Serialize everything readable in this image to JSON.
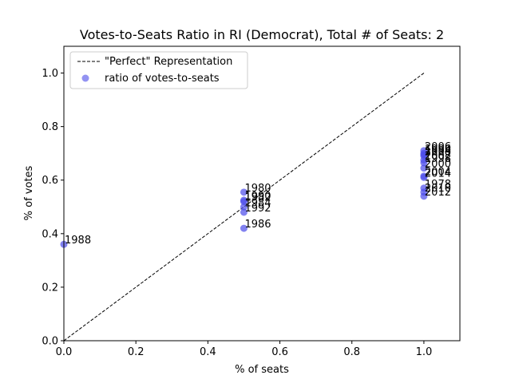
{
  "chart_data": {
    "type": "scatter",
    "title": "Votes-to-Seats Ratio in RI (Democrat), Total # of Seats: 2",
    "xlabel": "% of seats",
    "ylabel": "% of votes",
    "xlim": [
      0,
      1.1
    ],
    "ylim": [
      0,
      1.1
    ],
    "x_ticks": [
      0.0,
      0.2,
      0.4,
      0.6,
      0.8,
      1.0
    ],
    "x_tick_labels": [
      "0.0",
      "0.2",
      "0.4",
      "0.6",
      "0.8",
      "1.0"
    ],
    "y_ticks": [
      0.0,
      0.2,
      0.4,
      0.6,
      0.8,
      1.0
    ],
    "y_tick_labels": [
      "0.0",
      "0.2",
      "0.4",
      "0.6",
      "0.8",
      "1.0"
    ],
    "grid": false,
    "legend": {
      "placement": "top-left",
      "entries": [
        {
          "label": "\"Perfect\" Representation",
          "style": "dashed-line",
          "color": "#000000"
        },
        {
          "label": "ratio of votes-to-seats",
          "style": "marker",
          "color": "#4b4bea"
        }
      ]
    },
    "reference_line": {
      "x": [
        0,
        1
      ],
      "y": [
        0,
        1
      ],
      "style": "dashed",
      "color": "#000000"
    },
    "series": [
      {
        "name": "ratio of votes-to-seats",
        "color": "#4b4bea",
        "points": [
          {
            "label": "1988",
            "x": 0.0,
            "y": 0.36
          },
          {
            "label": "1986",
            "x": 0.5,
            "y": 0.42
          },
          {
            "label": "1992",
            "x": 0.5,
            "y": 0.48
          },
          {
            "label": "1984",
            "x": 0.5,
            "y": 0.5
          },
          {
            "label": "1982",
            "x": 0.5,
            "y": 0.52
          },
          {
            "label": "1990",
            "x": 0.5,
            "y": 0.525
          },
          {
            "label": "1980",
            "x": 0.5,
            "y": 0.555
          },
          {
            "label": "2012",
            "x": 1.0,
            "y": 0.54
          },
          {
            "label": "2010",
            "x": 1.0,
            "y": 0.555
          },
          {
            "label": "1978",
            "x": 1.0,
            "y": 0.57
          },
          {
            "label": "2014",
            "x": 1.0,
            "y": 0.61
          },
          {
            "label": "2004",
            "x": 1.0,
            "y": 0.615
          },
          {
            "label": "2000",
            "x": 1.0,
            "y": 0.645
          },
          {
            "label": "1998",
            "x": 1.0,
            "y": 0.665
          },
          {
            "label": "2002",
            "x": 1.0,
            "y": 0.675
          },
          {
            "label": "2008",
            "x": 1.0,
            "y": 0.69
          },
          {
            "label": "1994",
            "x": 1.0,
            "y": 0.695
          },
          {
            "label": "1996",
            "x": 1.0,
            "y": 0.7
          },
          {
            "label": "2006",
            "x": 1.0,
            "y": 0.71
          }
        ]
      }
    ]
  }
}
